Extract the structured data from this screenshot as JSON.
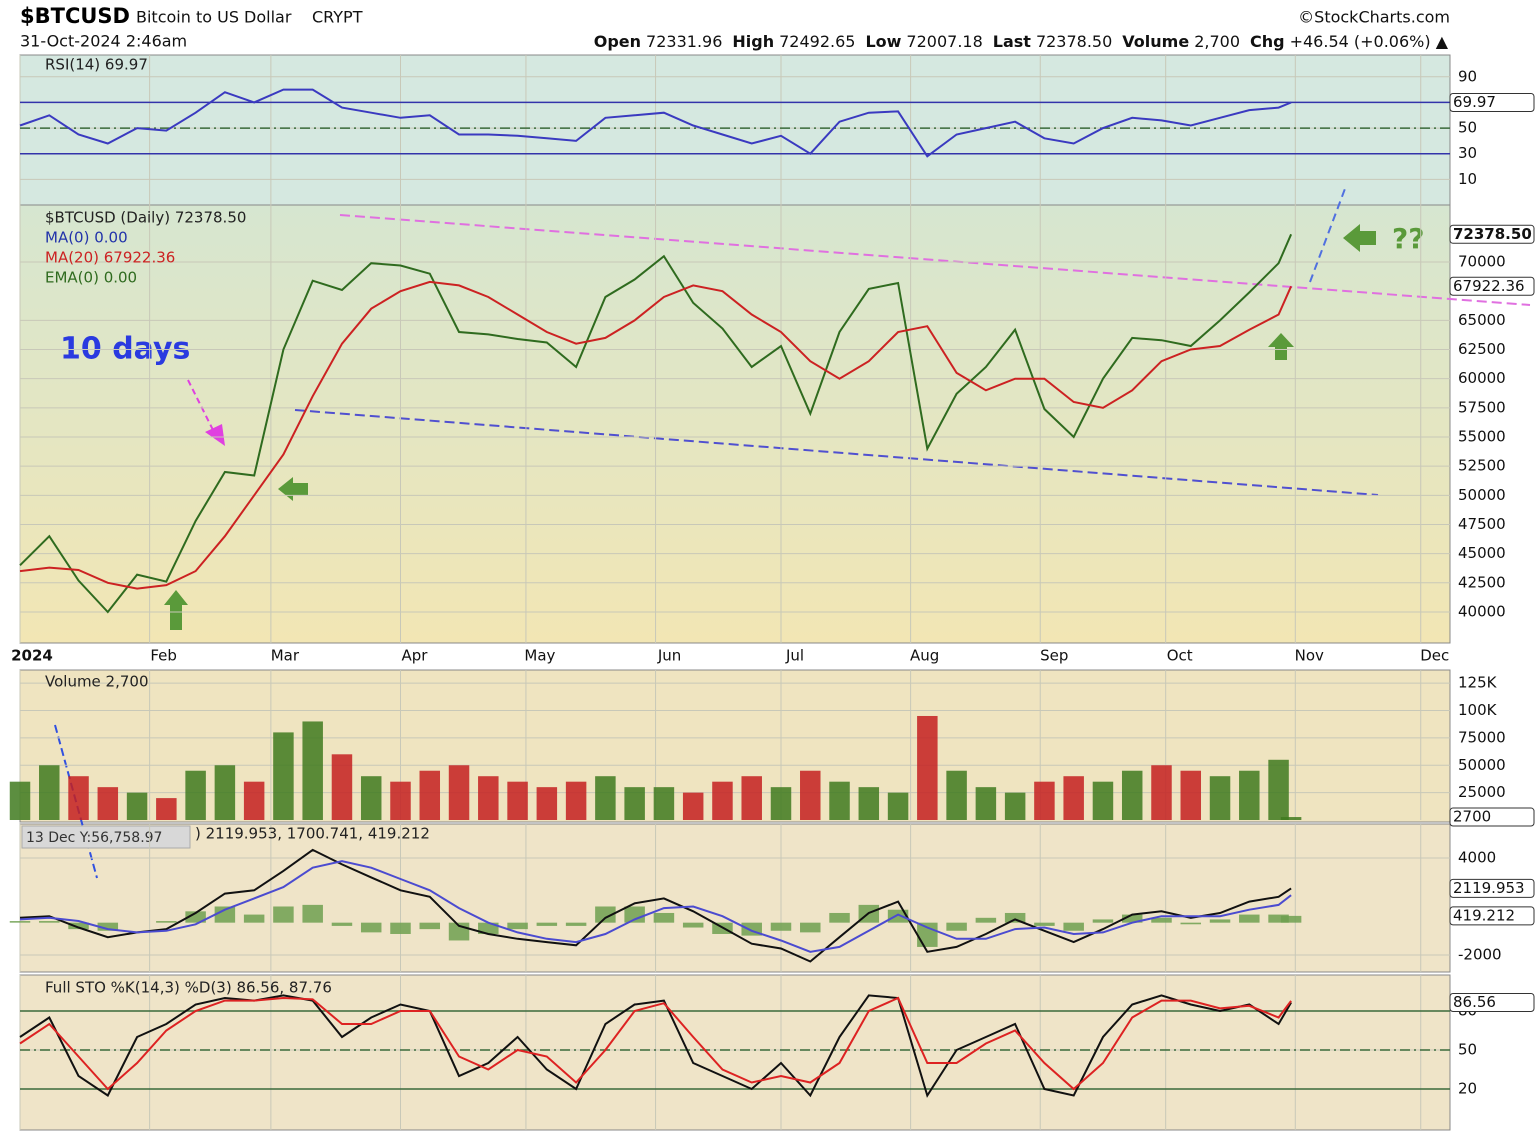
{
  "header": {
    "symbol": "$BTCUSD",
    "name": "Bitcoin to US Dollar",
    "exchange": "CRYPT",
    "date": "31-Oct-2024 2:46am",
    "source": "©StockCharts.com",
    "quote": [
      {
        "label": "Open",
        "value": "72331.96"
      },
      {
        "label": "High",
        "value": "72492.65"
      },
      {
        "label": "Low",
        "value": "72007.18"
      },
      {
        "label": "Last",
        "value": "72378.50"
      },
      {
        "label": "Volume",
        "value": "2,700"
      },
      {
        "label": "Chg",
        "value": "+46.54 (+0.06%) ▲"
      }
    ]
  },
  "annotations": {
    "days": "10 days",
    "question": "??",
    "crosshair": "13 Dec Y:56,758.97"
  },
  "chart_data": [
    {
      "type": "line",
      "title": "RSI(14) 69.97",
      "xlim": [
        0,
        342
      ],
      "ylim": [
        -10,
        107
      ],
      "yticks": [
        10,
        30,
        50,
        90
      ],
      "levels": [
        70,
        50,
        30
      ],
      "x": [
        0,
        7,
        14,
        21,
        28,
        35,
        42,
        49,
        56,
        63,
        70,
        77,
        84,
        91,
        98,
        105,
        112,
        119,
        126,
        133,
        140,
        147,
        154,
        161,
        168,
        175,
        182,
        189,
        196,
        203,
        210,
        217,
        224,
        231,
        238,
        245,
        252,
        259,
        266,
        273,
        280,
        287,
        294,
        301,
        304
      ],
      "series": [
        {
          "color": "#3a3ac0",
          "end_label": "69.97",
          "values": [
            52,
            60,
            45,
            38,
            50,
            48,
            62,
            78,
            70,
            80,
            80,
            66,
            62,
            58,
            60,
            45,
            45,
            44,
            42,
            40,
            58,
            60,
            62,
            52,
            45,
            38,
            44,
            30,
            55,
            62,
            63,
            28,
            45,
            50,
            55,
            42,
            38,
            50,
            58,
            56,
            52,
            58,
            64,
            66,
            69.97
          ]
        }
      ]
    },
    {
      "type": "line",
      "xlim": [
        0,
        342
      ],
      "ylim": [
        37340,
        74890
      ],
      "yticks": [
        40000,
        42500,
        45000,
        47500,
        50000,
        52500,
        55000,
        57500,
        60000,
        62500,
        65000,
        70000
      ],
      "xticks": [
        {
          "value": 0,
          "label": "2024"
        },
        {
          "value": 31,
          "label": "Feb"
        },
        {
          "value": 60,
          "label": "Mar"
        },
        {
          "value": 91,
          "label": "Apr"
        },
        {
          "value": 121,
          "label": "May"
        },
        {
          "value": 152,
          "label": "Jun"
        },
        {
          "value": 182,
          "label": "Jul"
        },
        {
          "value": 213,
          "label": "Aug"
        },
        {
          "value": 244,
          "label": "Sep"
        },
        {
          "value": 274,
          "label": "Oct"
        },
        {
          "value": 305,
          "label": "Nov"
        },
        {
          "value": 335,
          "label": "Dec"
        }
      ],
      "legend": [
        {
          "name": "$BTCUSD (Daily) 72378.50",
          "color": "#222222"
        },
        {
          "name": "MA(0) 0.00",
          "color": "#2233aa"
        },
        {
          "name": "MA(20) 67922.36",
          "color": "#cc2222"
        },
        {
          "name": "EMA(0) 0.00",
          "color": "#2f6b1f"
        }
      ],
      "x": [
        0,
        7,
        14,
        21,
        28,
        35,
        42,
        49,
        56,
        63,
        70,
        77,
        84,
        91,
        98,
        105,
        112,
        119,
        126,
        133,
        140,
        147,
        154,
        161,
        168,
        175,
        182,
        189,
        196,
        203,
        210,
        217,
        224,
        231,
        238,
        245,
        252,
        259,
        266,
        273,
        280,
        287,
        294,
        301,
        304
      ],
      "series": [
        {
          "color": "#2f6b1f",
          "end_label": "72378.50",
          "values": [
            44000,
            46500,
            42700,
            40000,
            43200,
            42600,
            47800,
            52000,
            51700,
            62500,
            68400,
            67600,
            69900,
            69700,
            69000,
            64000,
            63800,
            63400,
            63100,
            61000,
            67000,
            68500,
            70500,
            66500,
            64300,
            61000,
            62800,
            57000,
            64000,
            67700,
            68200,
            54000,
            58700,
            61000,
            64200,
            57400,
            55000,
            60000,
            63500,
            63300,
            62800,
            65000,
            67400,
            69900,
            72378.5
          ]
        },
        {
          "color": "#cc2222",
          "end_label": "67922.36",
          "values": [
            43500,
            43800,
            43600,
            42500,
            42000,
            42300,
            43500,
            46500,
            50000,
            53500,
            58500,
            63000,
            66000,
            67500,
            68300,
            68000,
            67000,
            65500,
            64000,
            63000,
            63500,
            65000,
            67000,
            68000,
            67500,
            65500,
            64000,
            61500,
            60000,
            61500,
            64000,
            64500,
            60500,
            59000,
            60000,
            60000,
            58000,
            57500,
            59000,
            61500,
            62500,
            62800,
            64200,
            65500,
            67922.36
          ]
        }
      ]
    },
    {
      "type": "bar",
      "title": "Volume 2,700",
      "xlim": [
        0,
        342
      ],
      "ylim": [
        0,
        137000
      ],
      "up_color": "#3f7a1f",
      "down_color": "#c42020",
      "yticks": [
        25000,
        50000,
        75000,
        {
          "value": 100000,
          "label": "100K"
        },
        {
          "value": 125000,
          "label": "125K"
        }
      ],
      "x": [
        0,
        7,
        14,
        21,
        28,
        35,
        42,
        49,
        56,
        63,
        70,
        77,
        84,
        91,
        98,
        105,
        112,
        119,
        126,
        133,
        140,
        147,
        154,
        161,
        168,
        175,
        182,
        189,
        196,
        203,
        210,
        217,
        224,
        231,
        238,
        245,
        252,
        259,
        266,
        273,
        280,
        287,
        294,
        301,
        304
      ],
      "series": [
        {
          "end_label": "2700",
          "values": [
            35000,
            50000,
            40000,
            30000,
            25000,
            20000,
            45000,
            50000,
            35000,
            80000,
            90000,
            60000,
            40000,
            35000,
            45000,
            50000,
            40000,
            35000,
            30000,
            35000,
            40000,
            30000,
            30000,
            25000,
            35000,
            40000,
            30000,
            45000,
            35000,
            30000,
            25000,
            95000,
            45000,
            30000,
            25000,
            35000,
            40000,
            35000,
            45000,
            50000,
            45000,
            40000,
            45000,
            55000,
            2700
          ]
        }
      ]
    },
    {
      "type": "line",
      "title": ") 2119.953, 1700.741, 419.212",
      "xlim": [
        0,
        342
      ],
      "ylim": [
        -3050,
        6100
      ],
      "yticks": [
        -2000,
        4000
      ],
      "x": [
        0,
        7,
        14,
        21,
        28,
        35,
        42,
        49,
        56,
        63,
        70,
        77,
        84,
        91,
        98,
        105,
        112,
        119,
        126,
        133,
        140,
        147,
        154,
        161,
        168,
        175,
        182,
        189,
        196,
        203,
        210,
        217,
        224,
        231,
        238,
        245,
        252,
        259,
        266,
        273,
        280,
        287,
        294,
        301,
        304
      ],
      "series": [
        {
          "type": "bar",
          "color": "#6fa050",
          "end_label": "419.212",
          "values": [
            100,
            100,
            -400,
            -500,
            0,
            100,
            700,
            1000,
            500,
            1000,
            1100,
            -200,
            -600,
            -700,
            -400,
            -1100,
            -700,
            -400,
            -200,
            -200,
            1000,
            1000,
            600,
            -300,
            -700,
            -800,
            -500,
            -600,
            600,
            1100,
            800,
            -1500,
            -500,
            300,
            600,
            -200,
            -500,
            200,
            500,
            300,
            -100,
            200,
            500,
            500,
            419.212
          ]
        },
        {
          "color": "#111111",
          "end_label": "2119.953",
          "values": [
            300,
            400,
            -300,
            -900,
            -600,
            -400,
            600,
            1800,
            2000,
            3200,
            4500,
            3600,
            2800,
            2000,
            1600,
            -200,
            -700,
            -1000,
            -1200,
            -1400,
            300,
            1200,
            1500,
            700,
            -300,
            -1300,
            -1600,
            -2400,
            -900,
            600,
            1300,
            -1800,
            -1500,
            -700,
            200,
            -500,
            -1200,
            -400,
            500,
            700,
            300,
            600,
            1300,
            1600,
            2119.953
          ]
        },
        {
          "color": "#4b4bd0",
          "values": [
            200,
            300,
            100,
            -400,
            -600,
            -500,
            -100,
            800,
            1500,
            2200,
            3400,
            3800,
            3400,
            2700,
            2000,
            900,
            0,
            -600,
            -1000,
            -1200,
            -700,
            200,
            900,
            1000,
            400,
            -500,
            -1100,
            -1800,
            -1500,
            -500,
            500,
            -300,
            -1000,
            -1000,
            -400,
            -300,
            -700,
            -600,
            0,
            400,
            400,
            400,
            800,
            1100,
            1700.741
          ]
        }
      ]
    },
    {
      "type": "line",
      "title": "Full STO %K(14,3) %D(3) 86.56, 87.76",
      "xlim": [
        0,
        342
      ],
      "ylim": [
        -11.5,
        107.7
      ],
      "yticks": [
        20,
        50,
        80
      ],
      "levels": [
        80,
        50,
        20
      ],
      "x": [
        0,
        7,
        14,
        21,
        28,
        35,
        42,
        49,
        56,
        63,
        70,
        77,
        84,
        91,
        98,
        105,
        112,
        119,
        126,
        133,
        140,
        147,
        154,
        161,
        168,
        175,
        182,
        189,
        196,
        203,
        210,
        217,
        224,
        231,
        238,
        245,
        252,
        259,
        266,
        273,
        280,
        287,
        294,
        301,
        304
      ],
      "series": [
        {
          "color": "#111111",
          "end_label": "86.56",
          "values": [
            60,
            75,
            30,
            15,
            60,
            70,
            85,
            90,
            88,
            92,
            88,
            60,
            75,
            85,
            80,
            30,
            40,
            60,
            35,
            20,
            70,
            85,
            88,
            40,
            30,
            20,
            40,
            15,
            60,
            92,
            90,
            15,
            50,
            60,
            70,
            20,
            15,
            60,
            85,
            92,
            85,
            80,
            85,
            70,
            86.56
          ]
        },
        {
          "color": "#dd2222",
          "values": [
            55,
            70,
            45,
            20,
            40,
            65,
            80,
            88,
            88,
            90,
            89,
            70,
            70,
            80,
            80,
            45,
            35,
            50,
            45,
            25,
            50,
            80,
            86,
            60,
            35,
            25,
            30,
            25,
            40,
            80,
            90,
            40,
            40,
            55,
            65,
            40,
            20,
            40,
            75,
            88,
            88,
            82,
            84,
            75,
            87.76
          ]
        }
      ]
    }
  ]
}
